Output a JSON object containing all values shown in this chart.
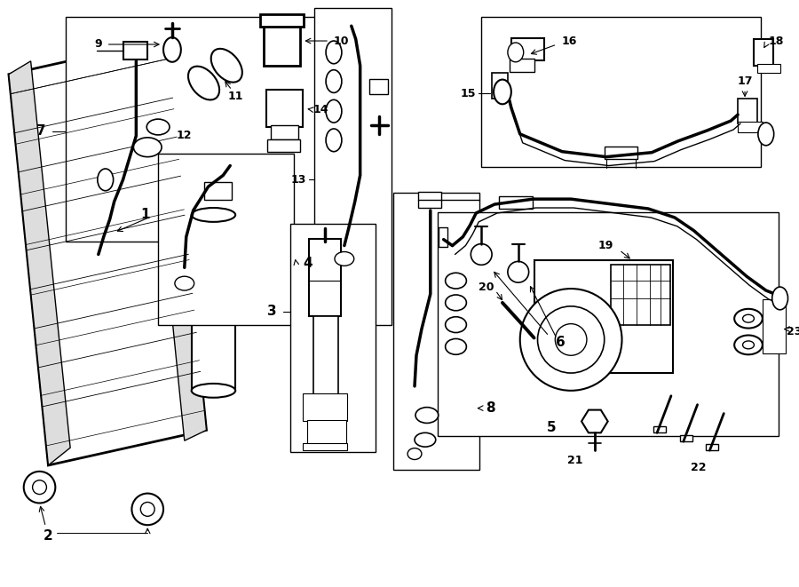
{
  "bg": "#ffffff",
  "lc": "#000000",
  "figw": 9.0,
  "figh": 6.61,
  "dpi": 100
}
